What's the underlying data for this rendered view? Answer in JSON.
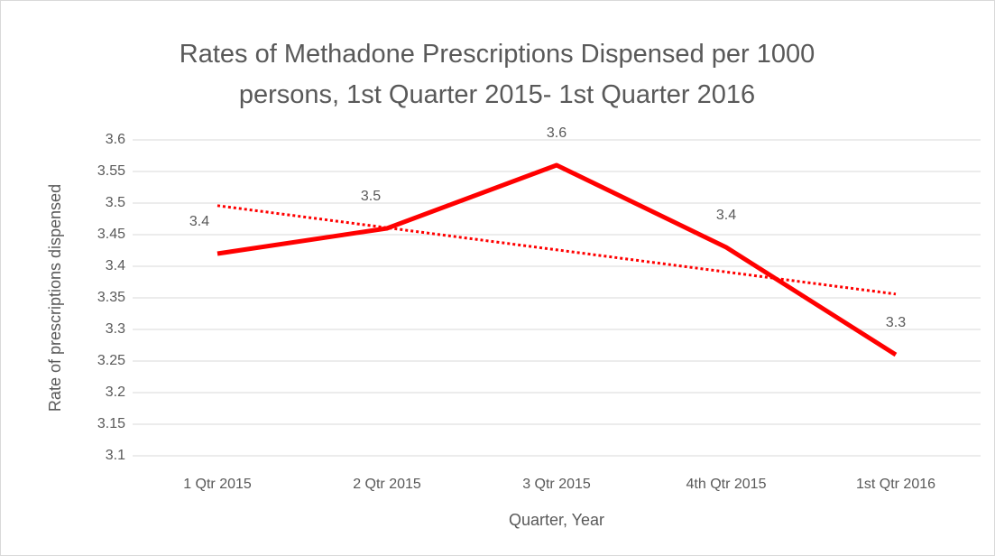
{
  "chart_data": {
    "type": "line",
    "title": "Rates of Methadone Prescriptions Dispensed per 1000 persons, 1st Quarter 2015- 1st Quarter 2016",
    "x_label": "Quarter, Year",
    "y_label": "Rate of prescriptions dispensed",
    "categories": [
      "1 Qtr 2015",
      "2 Qtr 2015",
      "3 Qtr 2015",
      "4th Qtr 2015",
      "1st Qtr 2016"
    ],
    "values": [
      3.42,
      3.46,
      3.56,
      3.43,
      3.26
    ],
    "value_labels": [
      "3.4",
      "3.5",
      "3.6",
      "3.4",
      "3.3"
    ],
    "color": "#ff0000",
    "trendline": "linear",
    "ylim": [
      3.1,
      3.6
    ],
    "yticks": [
      3.1,
      3.15,
      3.2,
      3.25,
      3.3,
      3.35,
      3.4,
      3.45,
      3.5,
      3.55,
      3.6
    ],
    "grid": true
  }
}
